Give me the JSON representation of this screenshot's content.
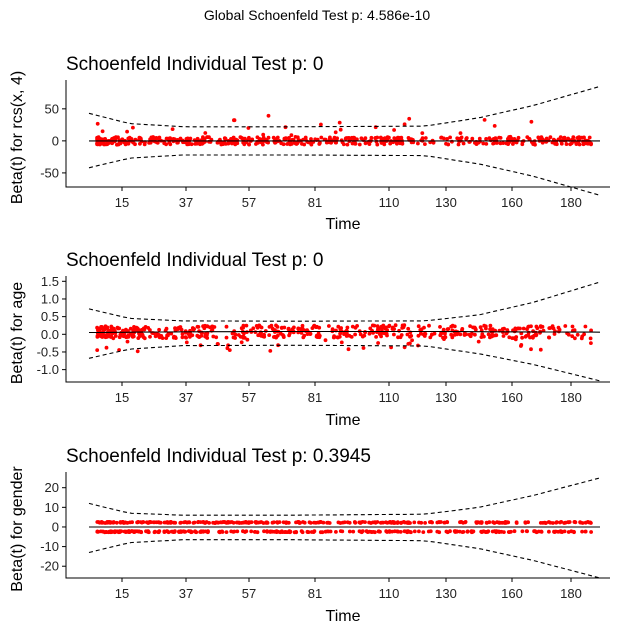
{
  "global_title": "Global Schoenfeld Test p: 4.586e-10",
  "colors": {
    "points": "#ff0000",
    "lines": "#000000",
    "background": "#ffffff"
  },
  "chart_data": [
    {
      "type": "scatter",
      "title": "Schoenfeld Individual Test p: 0",
      "xlabel": "Time",
      "ylabel": "Beta(t) for rcs(x, 4)",
      "x_ticks": [
        "15",
        "37",
        "57",
        "81",
        "110",
        "130",
        "160",
        "180"
      ],
      "y_ticks": [
        -50,
        0,
        50
      ],
      "ylim": [
        -72,
        95
      ],
      "x_range": [
        5,
        195
      ],
      "fit": {
        "x": [
          5,
          40,
          80,
          130,
          160,
          195
        ],
        "y": [
          0,
          0,
          0,
          0,
          0,
          0
        ]
      },
      "band_upper": {
        "x": [
          5,
          20,
          40,
          80,
          130,
          150,
          170,
          195
        ],
        "y": [
          43,
          27,
          22,
          22,
          23,
          36,
          55,
          85
        ]
      },
      "band_lower": {
        "x": [
          5,
          20,
          40,
          80,
          130,
          150,
          170,
          195
        ],
        "y": [
          -42,
          -27,
          -22,
          -22,
          -23,
          -36,
          -55,
          -85
        ]
      },
      "noise": {
        "core": 6,
        "outlier_max": 40,
        "seed": 11
      }
    },
    {
      "type": "scatter",
      "title": "Schoenfeld Individual Test p: 0",
      "xlabel": "Time",
      "ylabel": "Beta(t) for age",
      "x_ticks": [
        "15",
        "37",
        "57",
        "81",
        "110",
        "130",
        "160",
        "180"
      ],
      "y_ticks": [
        -1.0,
        -0.5,
        0.0,
        0.5,
        1.0,
        1.5
      ],
      "y_tick_labels": [
        "-1.0",
        "-0.5",
        "0.0",
        "0.5",
        "1.0",
        "1.5"
      ],
      "ylim": [
        -1.35,
        1.65
      ],
      "x_range": [
        5,
        195
      ],
      "fit": {
        "x": [
          5,
          40,
          80,
          130,
          160,
          195
        ],
        "y": [
          0.05,
          0.07,
          0.08,
          0.08,
          0.07,
          0.06
        ]
      },
      "band_upper": {
        "x": [
          5,
          20,
          40,
          80,
          130,
          150,
          170,
          195
        ],
        "y": [
          0.72,
          0.45,
          0.38,
          0.37,
          0.38,
          0.55,
          0.9,
          1.48
        ]
      },
      "band_lower": {
        "x": [
          5,
          20,
          40,
          80,
          130,
          150,
          170,
          195
        ],
        "y": [
          -0.68,
          -0.42,
          -0.32,
          -0.31,
          -0.33,
          -0.55,
          -0.85,
          -1.32
        ]
      },
      "noise": {
        "core": 0.18,
        "outlier_max": -0.55,
        "seed": 23
      }
    },
    {
      "type": "scatter",
      "title": "Schoenfeld Individual Test p: 0.3945",
      "xlabel": "Time",
      "ylabel": "Beta(t) for gender",
      "x_ticks": [
        "15",
        "37",
        "57",
        "81",
        "110",
        "130",
        "160",
        "180"
      ],
      "y_ticks": [
        -20,
        -10,
        0,
        10,
        20
      ],
      "ylim": [
        -26,
        28
      ],
      "x_range": [
        5,
        195
      ],
      "fit": {
        "x": [
          5,
          40,
          80,
          130,
          160,
          195
        ],
        "y": [
          0,
          0,
          0,
          0,
          0,
          0
        ]
      },
      "band_upper": {
        "x": [
          5,
          20,
          40,
          80,
          130,
          150,
          170,
          195
        ],
        "y": [
          12,
          7,
          6,
          6,
          6.5,
          10,
          16,
          25
        ]
      },
      "band_lower": {
        "x": [
          5,
          20,
          40,
          80,
          130,
          150,
          170,
          195
        ],
        "y": [
          -13,
          -8,
          -6.5,
          -6.5,
          -7,
          -11,
          -17,
          -26
        ]
      },
      "noise": {
        "levels": [
          2.3,
          -2.4
        ],
        "seed": 37
      }
    }
  ]
}
